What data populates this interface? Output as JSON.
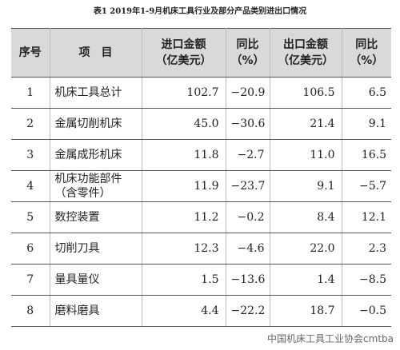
{
  "title": "表1 2019年1-9月机床工具行业及部分产品类别进出口情况",
  "table": {
    "header": [
      [
        "序号"
      ],
      [
        "项　目"
      ],
      [
        "进口金额",
        "（亿美元）"
      ],
      [
        "同比",
        "（%）"
      ],
      [
        "出口金额",
        "（亿美元）"
      ],
      [
        "同比",
        "（%）"
      ]
    ],
    "rows": [
      [
        "1",
        [
          "机床工具总计"
        ],
        "102.7",
        "−20.9",
        "106.5",
        "6.5"
      ],
      [
        "2",
        [
          "金属切削机床"
        ],
        "45.0",
        "−30.6",
        "21.4",
        "9.1"
      ],
      [
        "3",
        [
          "金属成形机床"
        ],
        "11.8",
        "−2.7",
        "11.0",
        "16.5"
      ],
      [
        "4",
        [
          "机床功能部件",
          "（含零件）"
        ],
        "11.9",
        "−23.7",
        "9.1",
        "−5.7"
      ],
      [
        "5",
        [
          "数控装置"
        ],
        "11.2",
        "−0.2",
        "8.4",
        "12.1"
      ],
      [
        "6",
        [
          "切削刀具"
        ],
        "12.3",
        "−4.6",
        "22.0",
        "2.3"
      ],
      [
        "7",
        [
          "量具量仪"
        ],
        "1.5",
        "−13.6",
        "1.4",
        "−8.5"
      ],
      [
        "8",
        [
          "磨料磨具"
        ],
        "4.4",
        "−22.2",
        "18.7",
        "−0.5"
      ]
    ]
  },
  "watermark": "中国机床工具工业协会cmtba"
}
